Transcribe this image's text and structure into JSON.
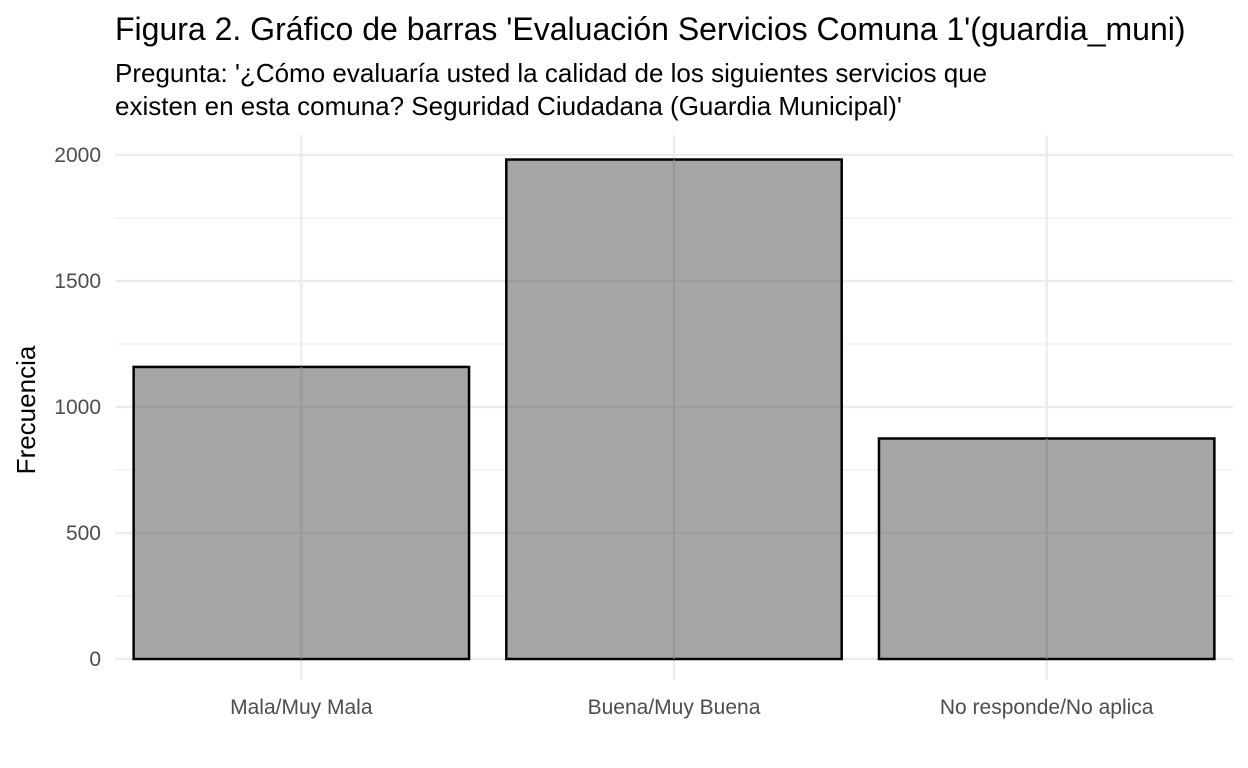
{
  "chart_data": {
    "type": "bar",
    "title": "Figura 2. Gráfico de barras 'Evaluación Servicios Comuna 1'(guardia_muni)",
    "subtitle_lines": [
      "Pregunta: '¿Cómo evaluaría usted la calidad de los siguientes servicios que",
      "existen en esta comuna? Seguridad Ciudadana (Guardia Municipal)'"
    ],
    "xlabel": "",
    "ylabel": "Frecuencia",
    "categories": [
      "Mala/Muy Mala",
      "Buena/Muy Buena",
      "No responde/No aplica"
    ],
    "values": [
      1159,
      1982,
      875
    ],
    "ylim": [
      0,
      2100
    ],
    "y_ticks": [
      0,
      500,
      1000,
      1500,
      2000
    ],
    "y_tick_labels": [
      "0",
      "500",
      "1000",
      "1500",
      "2000"
    ],
    "grid": true,
    "bar_fill": "#a6a6a6",
    "bar_stroke": "#000000",
    "grid_color": "#ebebeb"
  }
}
